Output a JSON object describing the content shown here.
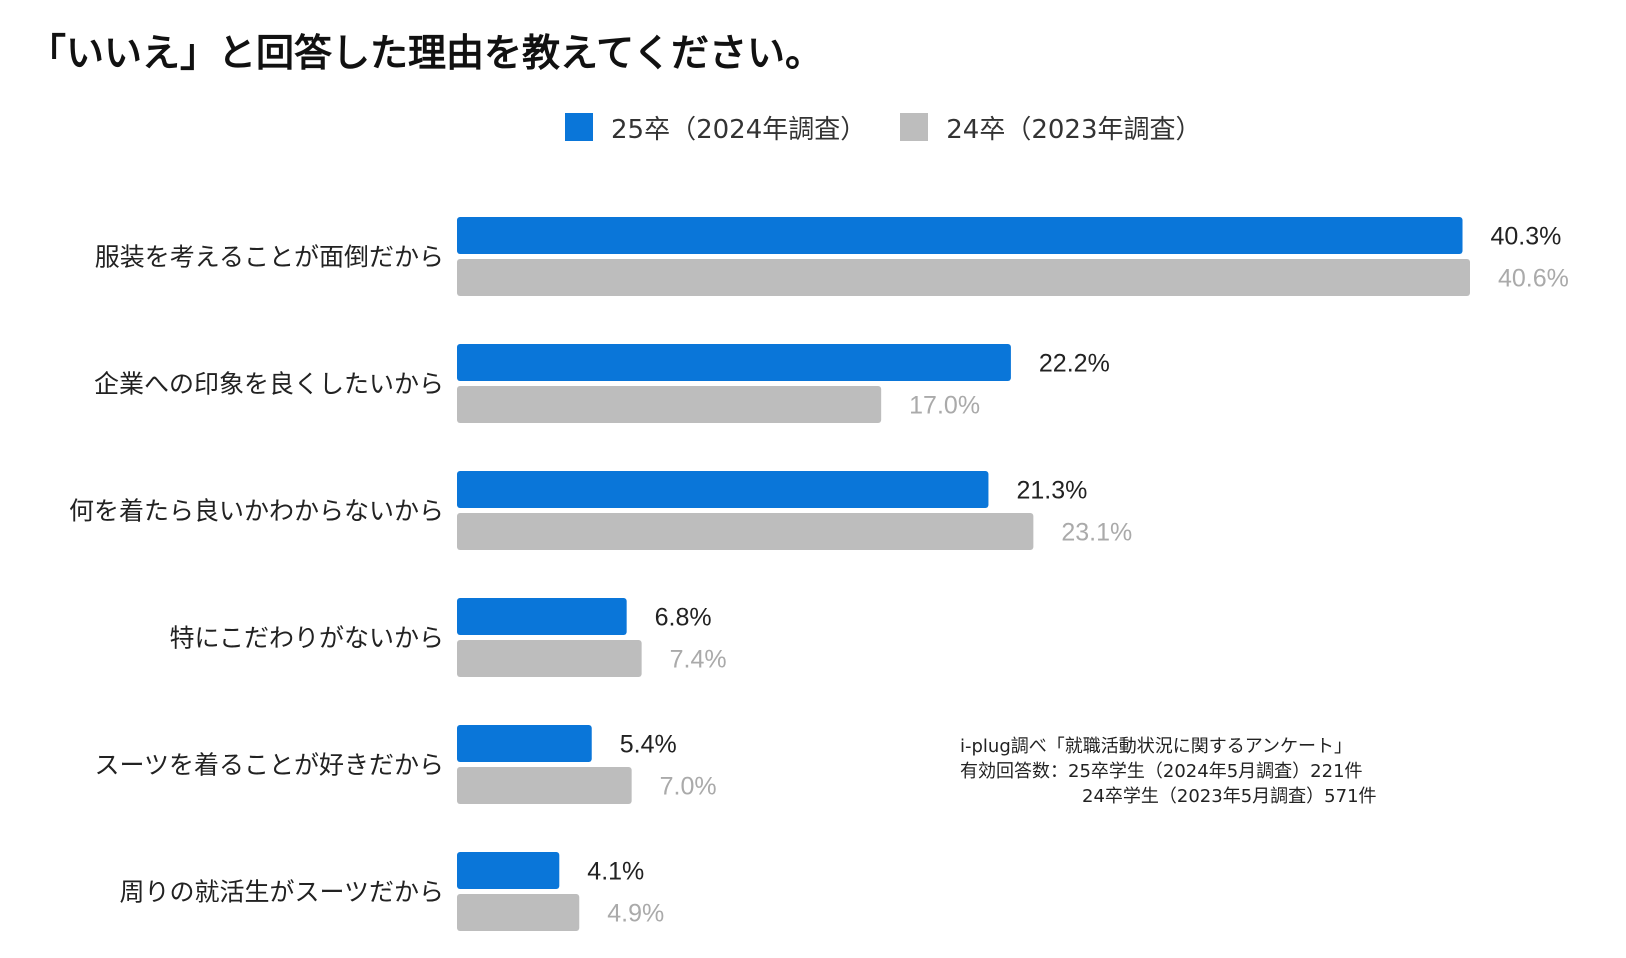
{
  "chart_data": {
    "type": "bar",
    "orientation": "horizontal",
    "title": "「いいえ」と回答した理由を教えてください。",
    "categories": [
      "服装を考えることが面倒だから",
      "企業への印象を良くしたいから",
      "何を着たら良いかわからないから",
      "特にこだわりがないから",
      "スーツを着ることが好きだから",
      "周りの就活生がスーツだから"
    ],
    "series": [
      {
        "name": "25卒（2024年調査）",
        "color": "#0a76d9",
        "label_color": "#222222",
        "values": [
          40.3,
          22.2,
          21.3,
          6.8,
          5.4,
          4.1
        ],
        "labels": [
          "40.3%",
          "22.2%",
          "21.3%",
          "6.8%",
          "5.4%",
          "4.1%"
        ]
      },
      {
        "name": "24卒（2023年調査）",
        "color": "#bdbdbd",
        "label_color": "#aaaaaa",
        "values": [
          40.6,
          17.0,
          23.1,
          7.4,
          7.0,
          4.9
        ],
        "labels": [
          "40.6%",
          "17.0%",
          "23.1%",
          "7.4%",
          "7.0%",
          "4.9%"
        ]
      }
    ],
    "xlim": [
      0,
      40.6
    ],
    "xlabel": "",
    "ylabel": "",
    "grid": false,
    "legend_position": "top"
  },
  "source_note": {
    "line1": "i-plug調べ「就職活動状況に関するアンケート」",
    "line2": "有効回答数：25卒学生（2024年5月調査）221件",
    "line3": "24卒学生（2023年5月調査）571件"
  }
}
